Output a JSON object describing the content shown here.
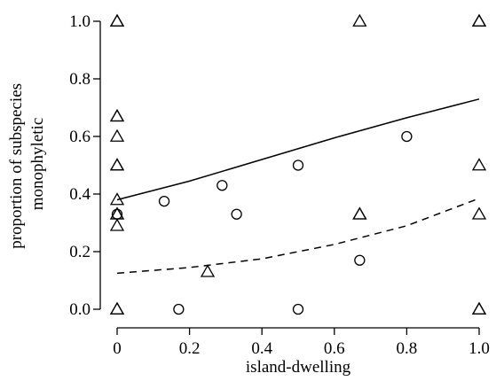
{
  "chart_data": {
    "type": "scatter",
    "title": "",
    "xlabel": "island-dwelling",
    "ylabel": [
      "proportion of subspecies",
      "monophyletic"
    ],
    "xlim": [
      0,
      1
    ],
    "ylim": [
      0,
      1
    ],
    "xticks": [
      "0",
      "0.2",
      "0.4",
      "0.6",
      "0.8",
      "1.0"
    ],
    "yticks": [
      "0.0",
      "0.2",
      "0.4",
      "0.6",
      "0.8",
      "1.0"
    ],
    "grid": false,
    "series": [
      {
        "marker": "circle",
        "points": [
          [
            0.0,
            0.33
          ],
          [
            0.13,
            0.375
          ],
          [
            0.17,
            0.0
          ],
          [
            0.29,
            0.43
          ],
          [
            0.33,
            0.33
          ],
          [
            0.5,
            0.5
          ],
          [
            0.5,
            0.0
          ],
          [
            0.67,
            0.17
          ],
          [
            0.8,
            0.6
          ]
        ]
      },
      {
        "marker": "triangle",
        "points": [
          [
            0.0,
            1.0
          ],
          [
            0.0,
            1.0
          ],
          [
            0.0,
            0.67
          ],
          [
            0.0,
            0.67
          ],
          [
            0.0,
            0.6
          ],
          [
            0.0,
            0.5
          ],
          [
            0.0,
            0.5
          ],
          [
            0.0,
            0.38
          ],
          [
            0.0,
            0.33
          ],
          [
            0.0,
            0.33
          ],
          [
            0.0,
            0.29
          ],
          [
            0.0,
            0.0
          ],
          [
            0.0,
            0.0
          ],
          [
            0.25,
            0.13
          ],
          [
            0.67,
            1.0
          ],
          [
            0.67,
            0.33
          ],
          [
            0.67,
            0.33
          ],
          [
            1.0,
            1.0
          ],
          [
            1.0,
            1.0
          ],
          [
            1.0,
            0.5
          ],
          [
            1.0,
            0.33
          ],
          [
            1.0,
            0.0
          ],
          [
            1.0,
            0.0
          ]
        ]
      }
    ],
    "fits": [
      {
        "style": "solid",
        "x": [
          0,
          0.2,
          0.4,
          0.6,
          0.8,
          1.0
        ],
        "y": [
          0.38,
          0.445,
          0.52,
          0.595,
          0.665,
          0.73
        ]
      },
      {
        "style": "dashed",
        "x": [
          0,
          0.2,
          0.4,
          0.6,
          0.8,
          1.0
        ],
        "y": [
          0.125,
          0.145,
          0.175,
          0.225,
          0.29,
          0.385
        ]
      }
    ]
  }
}
